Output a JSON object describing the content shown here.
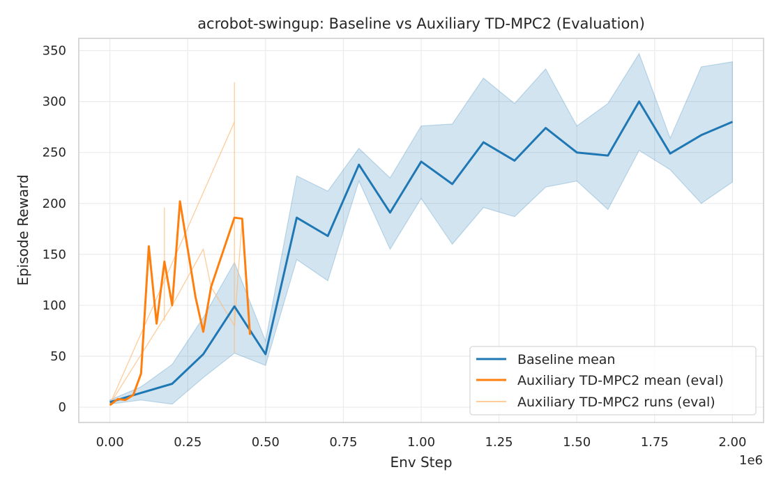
{
  "chart_data": {
    "type": "line",
    "title": "acrobot-swingup: Baseline vs Auxiliary TD-MPC2 (Evaluation)",
    "xlabel": "Env Step",
    "ylabel": "Episode Reward",
    "x_scale_label": "1e6",
    "xlim": [
      -0.1,
      2.1
    ],
    "ylim": [
      -15,
      362
    ],
    "x_ticks": [
      0,
      0.25,
      0.5,
      0.75,
      1.0,
      1.25,
      1.5,
      1.75,
      2.0
    ],
    "x_tick_labels": [
      "0.00",
      "0.25",
      "0.50",
      "0.75",
      "1.00",
      "1.25",
      "1.50",
      "1.75",
      "2.00"
    ],
    "y_ticks": [
      0,
      50,
      100,
      150,
      200,
      250,
      300,
      350
    ],
    "y_tick_labels": [
      "0",
      "50",
      "100",
      "150",
      "200",
      "250",
      "300",
      "350"
    ],
    "grid": true,
    "legend_position": "bottom-right",
    "series": [
      {
        "name": "Baseline mean",
        "color": "#1f77b4",
        "x": [
          0,
          0.1,
          0.2,
          0.3,
          0.4,
          0.5,
          0.6,
          0.7,
          0.8,
          0.9,
          1.0,
          1.1,
          1.2,
          1.3,
          1.4,
          1.5,
          1.6,
          1.7,
          1.8,
          1.9,
          2.0
        ],
        "y": [
          5,
          14,
          23,
          52,
          99,
          52,
          186,
          168,
          238,
          191,
          241,
          219,
          260,
          242,
          274,
          250,
          247,
          300,
          249,
          267,
          280
        ],
        "band_upper": [
          7,
          20,
          42,
          88,
          142,
          65,
          227,
          212,
          254,
          225,
          276,
          278,
          323,
          298,
          332,
          276,
          298,
          347,
          264,
          334,
          339
        ],
        "band_lower": [
          3,
          7,
          3,
          29,
          53,
          41,
          145,
          124,
          222,
          155,
          205,
          160,
          196,
          187,
          216,
          222,
          194,
          252,
          233,
          200,
          221
        ]
      },
      {
        "name": "Auxiliary TD-MPC2 mean (eval)",
        "color": "#ff7f0e",
        "x": [
          0,
          0.025,
          0.05,
          0.075,
          0.1,
          0.125,
          0.15,
          0.175,
          0.2,
          0.225,
          0.275,
          0.3,
          0.325,
          0.4,
          0.425,
          0.45
        ],
        "y": [
          2,
          8,
          7,
          12,
          33,
          158,
          82,
          143,
          100,
          202,
          108,
          74,
          118,
          186,
          185,
          71
        ]
      },
      {
        "name": "Auxiliary TD-MPC2 runs (eval)",
        "color": "#ffbb78",
        "runs": [
          {
            "x": [
              0,
              0.4
            ],
            "y": [
              3,
              280
            ]
          },
          {
            "x": [
              0,
              0.2,
              0.3,
              0.325,
              0.4,
              0.425
            ],
            "y": [
              3,
              100,
              155,
              118,
              80,
              185
            ]
          }
        ],
        "vlines": [
          {
            "x": 0.175,
            "y0": 85,
            "y1": 196
          },
          {
            "x": 0.4,
            "y0": 53,
            "y1": 319
          }
        ]
      }
    ]
  }
}
